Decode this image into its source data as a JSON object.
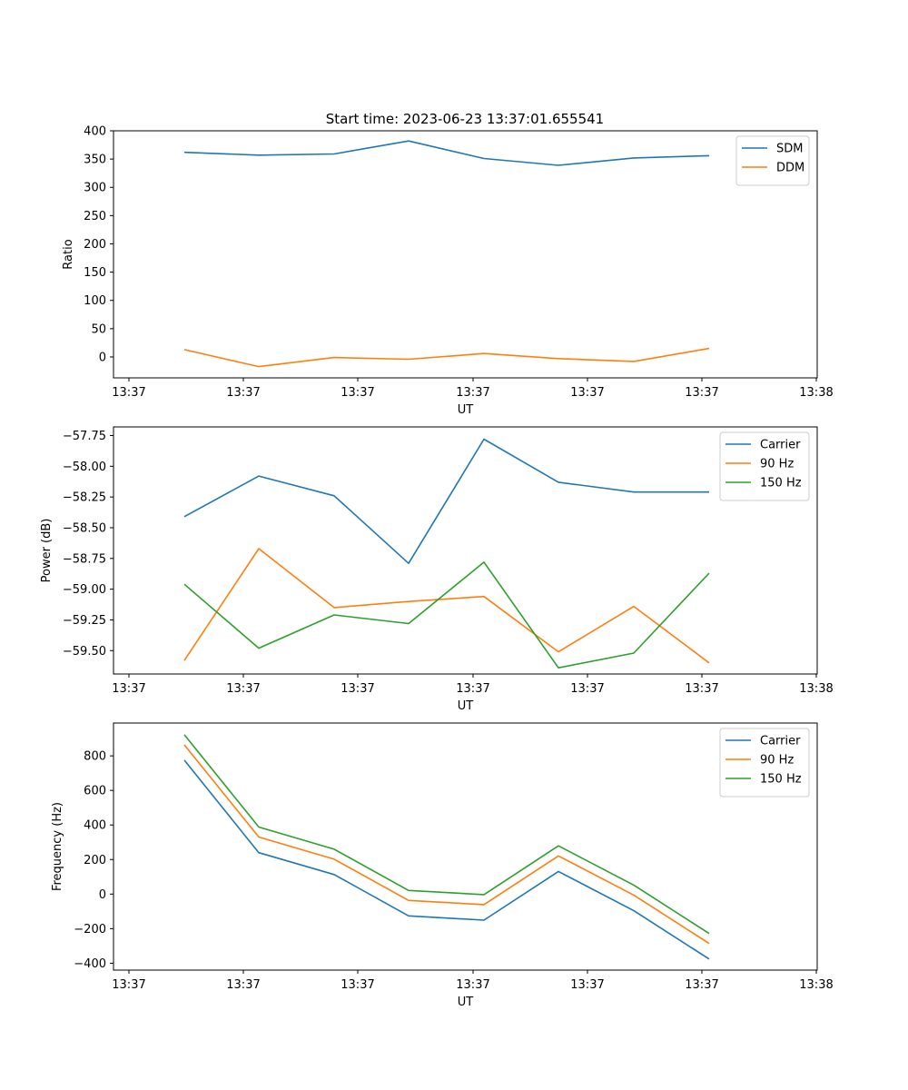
{
  "figure_title": "Start time: 2023-06-23 13:37:01.655541",
  "colors": {
    "blue": "#1f77b4",
    "orange": "#ff7f0e",
    "green": "#2ca02c"
  },
  "chart_data": [
    {
      "type": "line",
      "title": "Start time: 2023-06-23 13:37:01.655541",
      "xlabel": "UT",
      "ylabel": "Ratio",
      "x_tick_labels": [
        "13:37",
        "13:37",
        "13:37",
        "13:37",
        "13:37",
        "13:37",
        "13:38"
      ],
      "y_ticks": [
        0,
        50,
        100,
        150,
        200,
        250,
        300,
        350,
        400
      ],
      "ylim": [
        -37,
        400
      ],
      "legend": "upper right",
      "series": [
        {
          "name": "SDM",
          "color": "#1f77b4",
          "values": [
            362,
            357,
            359,
            382,
            351,
            339,
            352,
            356
          ]
        },
        {
          "name": "DDM",
          "color": "#ff7f0e",
          "values": [
            13,
            -17,
            -1,
            -4,
            6,
            -3,
            -8,
            15
          ]
        }
      ]
    },
    {
      "type": "line",
      "xlabel": "UT",
      "ylabel": "Power (dB)",
      "x_tick_labels": [
        "13:37",
        "13:37",
        "13:37",
        "13:37",
        "13:37",
        "13:37",
        "13:38"
      ],
      "y_ticks": [
        -59.5,
        -59.25,
        -59.0,
        -58.75,
        -58.5,
        -58.25,
        -58.0,
        -57.75
      ],
      "y_tick_labels": [
        "−59.50",
        "−59.25",
        "−59.00",
        "−58.75",
        "−58.50",
        "−58.25",
        "−58.00",
        "−57.75"
      ],
      "ylim": [
        -59.69,
        -57.68
      ],
      "legend": "upper right",
      "series": [
        {
          "name": "Carrier",
          "color": "#1f77b4",
          "values": [
            -58.41,
            -58.08,
            -58.24,
            -58.79,
            -57.78,
            -58.13,
            -58.21,
            -58.21
          ]
        },
        {
          "name": "90 Hz",
          "color": "#ff7f0e",
          "values": [
            -59.58,
            -58.67,
            -59.15,
            -59.1,
            -59.06,
            -59.51,
            -59.14,
            -59.6
          ]
        },
        {
          "name": "150 Hz",
          "color": "#2ca02c",
          "values": [
            -58.96,
            -59.48,
            -59.21,
            -59.28,
            -58.78,
            -59.64,
            -59.52,
            -58.87
          ]
        }
      ]
    },
    {
      "type": "line",
      "xlabel": "UT",
      "ylabel": "Frequency (Hz)",
      "x_tick_labels": [
        "13:37",
        "13:37",
        "13:37",
        "13:37",
        "13:37",
        "13:37",
        "13:38"
      ],
      "y_ticks": [
        -400,
        -200,
        0,
        200,
        400,
        600,
        800
      ],
      "y_tick_labels": [
        "−400",
        "−200",
        "0",
        "200",
        "400",
        "600",
        "800"
      ],
      "ylim": [
        -440,
        990
      ],
      "legend": "upper right",
      "series": [
        {
          "name": "Carrier",
          "color": "#1f77b4",
          "values": [
            775,
            240,
            113,
            -126,
            -151,
            131,
            -96,
            -376
          ]
        },
        {
          "name": "90 Hz",
          "color": "#ff7f0e",
          "values": [
            864,
            330,
            202,
            -37,
            -61,
            221,
            -6,
            -286
          ]
        },
        {
          "name": "150 Hz",
          "color": "#2ca02c",
          "values": [
            922,
            388,
            260,
            21,
            -3,
            279,
            52,
            -228
          ]
        }
      ]
    }
  ]
}
